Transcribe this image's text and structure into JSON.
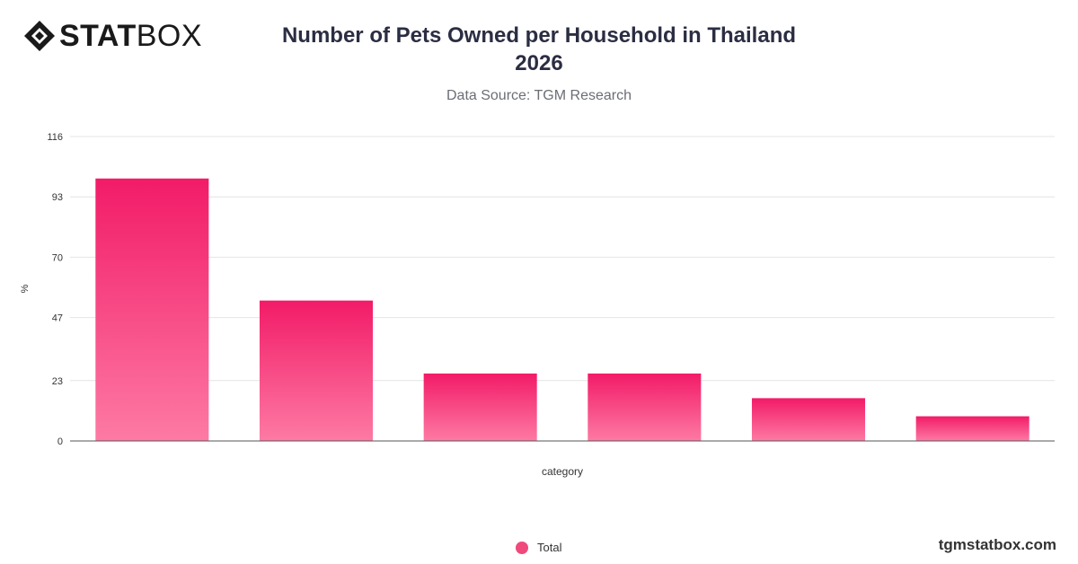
{
  "brand": {
    "logo_bold": "STAT",
    "logo_regular": "BOX",
    "logo_icon": "statbox-diamond-icon",
    "website": "tgmstatbox.com"
  },
  "header": {
    "title": "Number of Pets Owned per Household in Thailand 2026",
    "subtitle": "Data Source: TGM Research"
  },
  "colors": {
    "bar_top": "#f21b67",
    "bar_bottom": "#fd7aa4",
    "grid": "#e4e4e4",
    "axis": "#555555",
    "text": "#333333"
  },
  "chart_data": {
    "type": "bar",
    "title": "Number of Pets Owned per Household in Thailand 2026",
    "subtitle": "Data Source: TGM Research",
    "xlabel": "category",
    "ylabel": "%",
    "ylim": [
      0,
      116
    ],
    "yticks": [
      0,
      23,
      47,
      70,
      93,
      116
    ],
    "categories": [
      "",
      "",
      "",
      "",
      "",
      ""
    ],
    "series": [
      {
        "name": "Total",
        "values": [
          100,
          53.5,
          25.7,
          25.7,
          16.3,
          9.4
        ]
      }
    ],
    "grid": true,
    "legend": "bottom-center"
  }
}
